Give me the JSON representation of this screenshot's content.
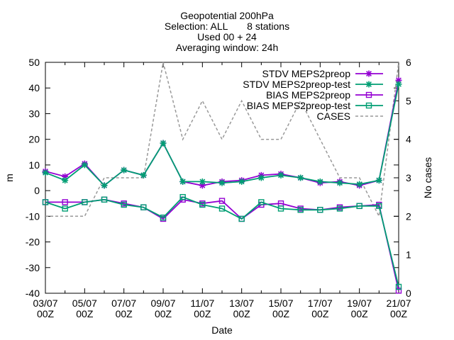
{
  "chart_data": {
    "type": "line",
    "title_lines": [
      "Geopotential 200hPa",
      "Selection: ALL       8 stations",
      "Used 00 + 24",
      "Averaging window: 24h"
    ],
    "xlabel": "Date",
    "ylabel": "m",
    "y2label": "No cases",
    "ylim": [
      -40,
      50
    ],
    "y2lim": [
      0,
      6
    ],
    "yticks": [
      -40,
      -30,
      -20,
      -10,
      0,
      10,
      20,
      30,
      40,
      50
    ],
    "y2ticks": [
      0,
      1,
      2,
      3,
      4,
      5,
      6
    ],
    "xlim": [
      "2023-07-03",
      "2023-07-21"
    ],
    "xtick_labels": [
      {
        "date": "03/07",
        "hour": "00Z"
      },
      {
        "date": "05/07",
        "hour": "00Z"
      },
      {
        "date": "07/07",
        "hour": "00Z"
      },
      {
        "date": "09/07",
        "hour": "00Z"
      },
      {
        "date": "11/07",
        "hour": "00Z"
      },
      {
        "date": "13/07",
        "hour": "00Z"
      },
      {
        "date": "15/07",
        "hour": "00Z"
      },
      {
        "date": "17/07",
        "hour": "00Z"
      },
      {
        "date": "19/07",
        "hour": "00Z"
      },
      {
        "date": "21/07",
        "hour": "00Z"
      }
    ],
    "x": [
      "2023-07-03",
      "2023-07-04",
      "2023-07-05",
      "2023-07-06",
      "2023-07-07",
      "2023-07-08",
      "2023-07-09",
      "2023-07-10",
      "2023-07-11",
      "2023-07-12",
      "2023-07-13",
      "2023-07-14",
      "2023-07-15",
      "2023-07-16",
      "2023-07-17",
      "2023-07-18",
      "2023-07-19",
      "2023-07-20",
      "2023-07-21"
    ],
    "legend_position": "top-right",
    "series": [
      {
        "name": "STDV MEPS2preop",
        "axis": "y1",
        "color": "#9400d3",
        "marker": "star",
        "style": "solid",
        "values": [
          7.5,
          5.5,
          10.5,
          2,
          8,
          6,
          18.5,
          3.5,
          2,
          3.5,
          4,
          6,
          6.5,
          5,
          3,
          3.5,
          2,
          4,
          43
        ]
      },
      {
        "name": "STDV MEPS2preop-test",
        "axis": "y1",
        "color": "#009e73",
        "marker": "star",
        "style": "solid",
        "values": [
          7,
          4,
          10,
          2,
          8,
          6,
          18.5,
          3.5,
          3.5,
          3,
          3.5,
          5,
          6,
          5,
          3.5,
          3,
          2.5,
          4,
          41.5
        ]
      },
      {
        "name": "BIAS MEPS2preop",
        "axis": "y1",
        "color": "#9400d3",
        "marker": "square",
        "style": "solid",
        "values": [
          -4.5,
          -4.5,
          -4.5,
          -3.5,
          -5,
          -6.5,
          -11,
          -3.5,
          -5,
          -4,
          -11,
          -5.5,
          -5,
          -7,
          -7.5,
          -6.5,
          -6,
          -5.5,
          -39
        ]
      },
      {
        "name": "BIAS MEPS2preop-test",
        "axis": "y1",
        "color": "#009e73",
        "marker": "square",
        "style": "solid",
        "values": [
          -4.5,
          -7,
          -4.5,
          -3.5,
          -5.5,
          -6.5,
          -10.5,
          -2.5,
          -5.5,
          -7,
          -11,
          -4.5,
          -7,
          -7.5,
          -7.5,
          -7,
          -6,
          -6,
          -37.5
        ]
      },
      {
        "name": "CASES",
        "axis": "y2",
        "color": "#999999",
        "marker": "none",
        "style": "dashed",
        "values": [
          2,
          2,
          2,
          3,
          3,
          3,
          6,
          4,
          5,
          4,
          5,
          4,
          4,
          5,
          4,
          3,
          3,
          2,
          6
        ]
      }
    ]
  }
}
